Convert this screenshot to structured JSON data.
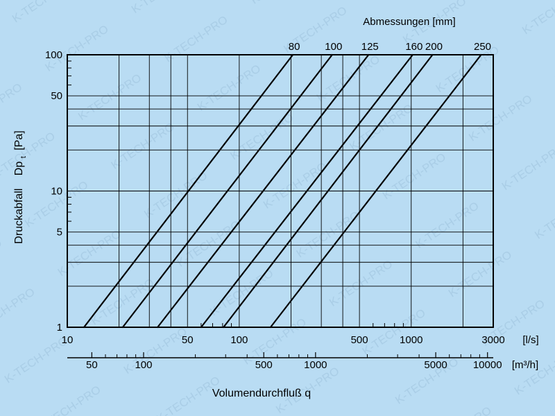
{
  "chart_data": {
    "type": "line",
    "title": "Abmessungen [mm]",
    "xlabel": "Volumendurchfluß q",
    "ylabel": "Druckabfall",
    "ylabel_symbol": "Dp",
    "ylabel_subscript": "t",
    "ylabel_unit": "[Pa]",
    "xscale": "log",
    "yscale": "log",
    "xlim": [
      10,
      3000
    ],
    "ylim": [
      1,
      100
    ],
    "x_unit": "[l/s]",
    "x2_unit": "[m³/h]",
    "grid": true,
    "x_ticks": [
      {
        "value": 10,
        "label": "10"
      },
      {
        "value": 50,
        "label": "50"
      },
      {
        "value": 100,
        "label": "100"
      },
      {
        "value": 500,
        "label": "500"
      },
      {
        "value": 1000,
        "label": "1000"
      },
      {
        "value": 3000,
        "label": "3000"
      }
    ],
    "x_grid": [
      20,
      30,
      40,
      50,
      100,
      200,
      300,
      400,
      500,
      1000,
      2000,
      3000
    ],
    "x_minor": [
      60,
      70,
      80,
      90,
      600,
      700,
      800,
      900
    ],
    "y_ticks": [
      {
        "value": 1,
        "label": "1"
      },
      {
        "value": 5,
        "label": "5"
      },
      {
        "value": 10,
        "label": "10"
      },
      {
        "value": 50,
        "label": "50"
      },
      {
        "value": 100,
        "label": "100"
      }
    ],
    "y_grid": [
      2,
      3,
      4,
      5,
      10,
      20,
      30,
      40,
      50,
      100
    ],
    "y_minor": [
      6,
      7,
      8,
      9,
      60,
      70,
      80,
      90
    ],
    "x2_ticks": [
      {
        "value": 50,
        "label": "50"
      },
      {
        "value": 100,
        "label": "100"
      },
      {
        "value": 500,
        "label": "500"
      },
      {
        "value": 1000,
        "label": "1000"
      },
      {
        "value": 5000,
        "label": "5000"
      },
      {
        "value": 10000,
        "label": "10000"
      }
    ],
    "x2_minor": [
      60,
      70,
      80,
      90,
      200,
      300,
      400,
      600,
      700,
      800,
      900,
      2000,
      3000,
      4000,
      6000,
      7000,
      8000,
      9000
    ],
    "series": [
      {
        "name": "80",
        "points": [
          [
            12.5,
            1
          ],
          [
            205,
            100
          ]
        ]
      },
      {
        "name": "100",
        "points": [
          [
            21,
            1
          ],
          [
            347,
            100
          ]
        ]
      },
      {
        "name": "125",
        "points": [
          [
            33.5,
            1
          ],
          [
            565,
            100
          ]
        ]
      },
      {
        "name": "160",
        "points": [
          [
            60,
            1
          ],
          [
            1020,
            100
          ]
        ]
      },
      {
        "name": "200",
        "points": [
          [
            81,
            1
          ],
          [
            1330,
            100
          ]
        ]
      },
      {
        "name": "250",
        "points": [
          [
            152,
            1
          ],
          [
            2550,
            100
          ]
        ]
      }
    ]
  },
  "watermark": "K-TECH-PRO"
}
